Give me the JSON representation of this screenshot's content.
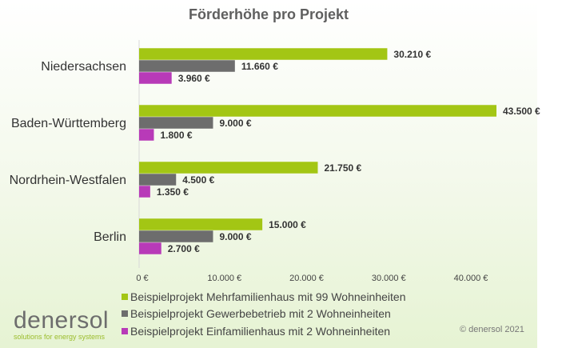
{
  "chart_data": {
    "type": "bar",
    "orientation": "horizontal",
    "title": "Förderhöhe pro Projekt",
    "categories": [
      "Niedersachsen",
      "Baden-Württemberg",
      "Nordrhein-Westfalen",
      "Berlin"
    ],
    "series": [
      {
        "name": "Beispielprojekt Mehrfamilienhaus mit 99 Wohneinheiten",
        "color": "#a3c614",
        "values": [
          30210,
          43500,
          21750,
          15000
        ],
        "labels": [
          "30.210 €",
          "43.500 €",
          "21.750 €",
          "15.000 €"
        ]
      },
      {
        "name": "Beispielprojekt Gewerbebetrieb mit 2 Wohneinheiten",
        "color": "#6d6d6d",
        "values": [
          11660,
          9000,
          4500,
          9000
        ],
        "labels": [
          "11.660 €",
          "9.000 €",
          "4.500 €",
          "9.000 €"
        ]
      },
      {
        "name": "Beispielprojekt Einfamilienhaus mit 2 Wohneinheiten",
        "color": "#b83ab8",
        "values": [
          3960,
          1800,
          1350,
          2700
        ],
        "labels": [
          "3.960 €",
          "1.800 €",
          "1.350 €",
          "2.700 €"
        ]
      }
    ],
    "xticks": [
      0,
      10000,
      20000,
      30000,
      40000
    ],
    "xtick_labels": [
      "0 €",
      "10.000 €",
      "20.000 €",
      "30.000 €",
      "40.000 €"
    ],
    "xlim": [
      0,
      43500
    ],
    "grid": false,
    "legend_placement": "bottom"
  },
  "branding": {
    "logo_text": "denersol",
    "tagline": "solutions for energy systems",
    "copyright": "© denersol 2021"
  }
}
